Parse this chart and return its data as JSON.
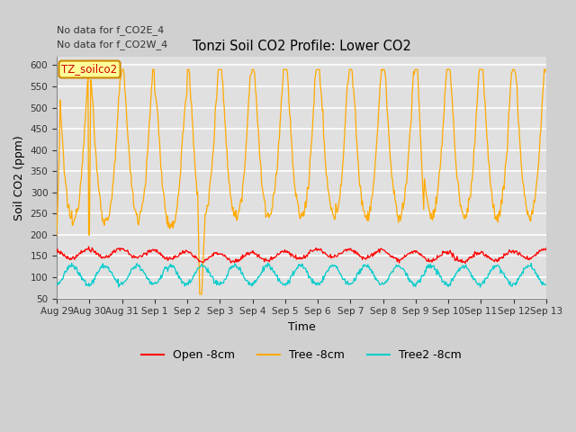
{
  "title": "Tonzi Soil CO2 Profile: Lower CO2",
  "xlabel": "Time",
  "ylabel": "Soil CO2 (ppm)",
  "ylim": [
    50,
    620
  ],
  "yticks": [
    50,
    100,
    150,
    200,
    250,
    300,
    350,
    400,
    450,
    500,
    550,
    600
  ],
  "annotation_lines": [
    "No data for f_CO2E_4",
    "No data for f_CO2W_4"
  ],
  "legend_box_label": "TZ_soilco2",
  "legend_box_color": "#ffff99",
  "legend_box_border": "#cc8800",
  "series": [
    {
      "label": "Open -8cm",
      "color": "#ff0000"
    },
    {
      "label": "Tree -8cm",
      "color": "#ffaa00"
    },
    {
      "label": "Tree2 -8cm",
      "color": "#00cccc"
    }
  ],
  "x_tick_labels": [
    "Aug 29",
    "Aug 30",
    "Aug 31",
    "Sep 1",
    "Sep 2",
    "Sep 3",
    "Sep 4",
    "Sep 5",
    "Sep 6",
    "Sep 7",
    "Sep 8",
    "Sep 9",
    "Sep 10",
    "Sep 11",
    "Sep 12",
    "Sep 13"
  ],
  "n_days": 15,
  "samples_per_day": 48,
  "fig_facecolor": "#d0d0d0",
  "plot_facecolor": "#e0e0e0",
  "grid_color": "#ffffff",
  "orange_base": 390,
  "orange_amp": 175,
  "red_base": 152,
  "red_amp": 10,
  "cyan_base": 105,
  "cyan_amp": 22
}
